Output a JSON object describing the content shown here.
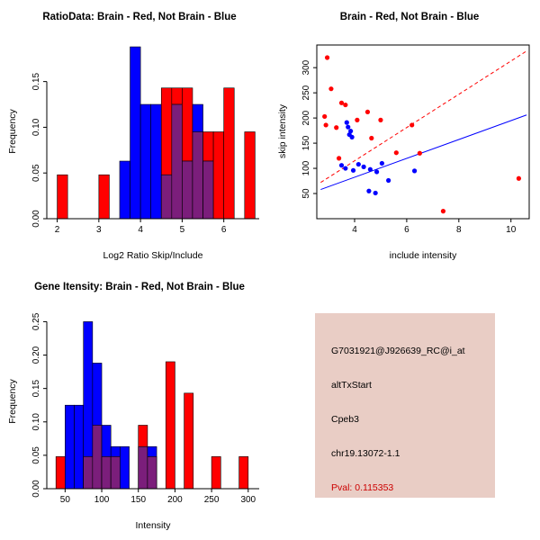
{
  "colors": {
    "red": "#ff0000",
    "blue": "#0000ff",
    "overlap": "#7b1e7b",
    "axis": "#000000"
  },
  "chart_data": [
    {
      "id": "ratio-histogram",
      "type": "bar",
      "title": "RatioData: Brain - Red, Not Brain - Blue",
      "xlabel": "Log2 Ratio Skip/Include",
      "ylabel": "Frequency",
      "xlim": [
        1.75,
        6.85
      ],
      "ylim": [
        0,
        0.19
      ],
      "bin_width": 0.25,
      "grid": false,
      "legend": "colors encoded in title: Brain=red, Not Brain=blue, overlap=purple",
      "xticks": [
        {
          "v": 2,
          "t": "2"
        },
        {
          "v": 3,
          "t": "3"
        },
        {
          "v": 4,
          "t": "4"
        },
        {
          "v": 5,
          "t": "5"
        },
        {
          "v": 6,
          "t": "6"
        }
      ],
      "yticks": [
        {
          "v": 0,
          "t": "0.00"
        },
        {
          "v": 0.05,
          "t": "0.05"
        },
        {
          "v": 0.1,
          "t": "0.10"
        },
        {
          "v": 0.15,
          "t": "0.15"
        }
      ],
      "bins": [
        [
          2.0,
          0.048,
          0
        ],
        [
          3.0,
          0.048,
          0
        ],
        [
          3.5,
          0,
          0.063
        ],
        [
          3.75,
          0,
          0.188
        ],
        [
          4.0,
          0,
          0.125
        ],
        [
          4.25,
          0,
          0.125
        ],
        [
          4.5,
          0.143,
          0.048
        ],
        [
          4.75,
          0.143,
          0.125
        ],
        [
          5.0,
          0.143,
          0.063
        ],
        [
          5.25,
          0.095,
          0.125
        ],
        [
          5.5,
          0.095,
          0.063
        ],
        [
          5.75,
          0.095,
          0
        ],
        [
          6.0,
          0.143,
          0
        ],
        [
          6.5,
          0.095,
          0
        ]
      ]
    },
    {
      "id": "intensity-scatter",
      "type": "scatter",
      "title": "Brain - Red, Not Brain - Blue",
      "xlabel": "include intensity",
      "ylabel": "skip intensity",
      "xlim": [
        2.55,
        10.7
      ],
      "ylim": [
        0,
        345
      ],
      "grid": false,
      "xticks": [
        {
          "v": 4,
          "t": "4"
        },
        {
          "v": 6,
          "t": "6"
        },
        {
          "v": 8,
          "t": "8"
        },
        {
          "v": 10,
          "t": "10"
        }
      ],
      "yticks": [
        {
          "v": 50,
          "t": "50"
        },
        {
          "v": 100,
          "t": "100"
        },
        {
          "v": 150,
          "t": "150"
        },
        {
          "v": 200,
          "t": "200"
        },
        {
          "v": 250,
          "t": "250"
        },
        {
          "v": 300,
          "t": "300"
        }
      ],
      "series": [
        {
          "name": "Brain",
          "color": "red",
          "points": [
            [
              2.95,
              320
            ],
            [
              3.1,
              258
            ],
            [
              3.5,
              230
            ],
            [
              3.65,
              226
            ],
            [
              2.85,
              203
            ],
            [
              2.9,
              186
            ],
            [
              3.3,
              181
            ],
            [
              4.1,
              196
            ],
            [
              4.5,
              212
            ],
            [
              5.0,
              196
            ],
            [
              4.65,
              160
            ],
            [
              5.6,
              131
            ],
            [
              6.2,
              186
            ],
            [
              6.5,
              130
            ],
            [
              3.4,
              120
            ],
            [
              7.4,
              15
            ],
            [
              10.3,
              80
            ]
          ]
        },
        {
          "name": "Not Brain",
          "color": "blue",
          "points": [
            [
              3.7,
              191
            ],
            [
              3.75,
              182
            ],
            [
              3.85,
              174
            ],
            [
              3.8,
              167
            ],
            [
              3.9,
              162
            ],
            [
              3.5,
              106
            ],
            [
              3.65,
              100
            ],
            [
              3.95,
              96
            ],
            [
              4.15,
              108
            ],
            [
              4.35,
              103
            ],
            [
              4.6,
              98
            ],
            [
              4.85,
              93
            ],
            [
              5.05,
              110
            ],
            [
              5.3,
              76
            ],
            [
              4.55,
              55
            ],
            [
              4.8,
              51
            ],
            [
              6.3,
              95
            ]
          ]
        }
      ],
      "lines": [
        {
          "name": "brain-fit-line",
          "color": "red",
          "dash": true,
          "x1": 2.7,
          "y1": 72,
          "x2": 10.6,
          "y2": 333
        },
        {
          "name": "notbrain-fit-line",
          "color": "blue",
          "dash": false,
          "x1": 2.7,
          "y1": 58,
          "x2": 10.6,
          "y2": 206
        }
      ]
    },
    {
      "id": "gene-intensity-histogram",
      "type": "bar",
      "title": "Gene Itensity: Brain - Red, Not Brain - Blue",
      "xlabel": "Intensity",
      "ylabel": "Frequency",
      "xlim": [
        25,
        315
      ],
      "ylim": [
        0,
        0.26
      ],
      "bin_width": 12.5,
      "grid": false,
      "xticks": [
        {
          "v": 50,
          "t": "50"
        },
        {
          "v": 100,
          "t": "100"
        },
        {
          "v": 150,
          "t": "150"
        },
        {
          "v": 200,
          "t": "200"
        },
        {
          "v": 250,
          "t": "250"
        },
        {
          "v": 300,
          "t": "300"
        }
      ],
      "yticks": [
        {
          "v": 0,
          "t": "0.00"
        },
        {
          "v": 0.05,
          "t": "0.05"
        },
        {
          "v": 0.1,
          "t": "0.10"
        },
        {
          "v": 0.15,
          "t": "0.15"
        },
        {
          "v": 0.2,
          "t": "0.20"
        },
        {
          "v": 0.25,
          "t": "0.25"
        }
      ],
      "bins": [
        [
          37.5,
          0.048,
          0
        ],
        [
          50.0,
          0,
          0.125
        ],
        [
          62.5,
          0,
          0.125
        ],
        [
          75.0,
          0.048,
          0.25
        ],
        [
          87.5,
          0.095,
          0.188
        ],
        [
          100.0,
          0.048,
          0.095
        ],
        [
          112.5,
          0.048,
          0.063
        ],
        [
          125.0,
          0,
          0.063
        ],
        [
          150.0,
          0.095,
          0.063
        ],
        [
          162.5,
          0.048,
          0.063
        ],
        [
          187.5,
          0.19,
          0
        ],
        [
          212.5,
          0.143,
          0
        ],
        [
          250.0,
          0.048,
          0
        ],
        [
          287.5,
          0.048,
          0
        ]
      ]
    }
  ],
  "info_panel": {
    "bg": "#e9cdc5",
    "lines": [
      "G7031921@J926639_RC@i_at",
      "altTxStart",
      "Cpeb3",
      "chr19.13072-1.1"
    ],
    "pval": "Pval: 0.115353",
    "pval_color": "#cc0000"
  }
}
